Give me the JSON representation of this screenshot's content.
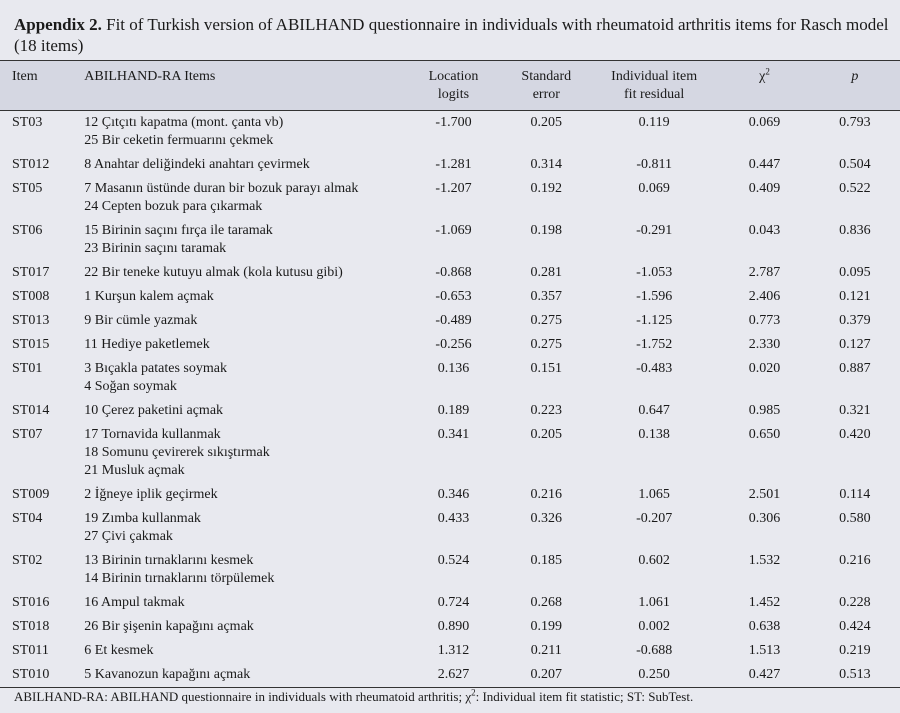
{
  "title": {
    "label": "Appendix 2.",
    "text": "Fit of Turkish version of ABILHAND questionnaire in individuals with rheumatoid arthritis items for Rasch model (18 items)"
  },
  "table": {
    "header": [
      [
        "Item"
      ],
      [
        "ABILHAND-RA Items"
      ],
      [
        "Location",
        "logits"
      ],
      [
        "Standard",
        "error"
      ],
      [
        "Individual item",
        "fit residual"
      ],
      {
        "base": "χ",
        "sup": "2"
      },
      [
        "p"
      ]
    ],
    "rows": [
      [
        "ST03",
        [
          "12 Çıtçıtı kapatma (mont. çanta vb)",
          "25 Bir ceketin fermuarını çekmek"
        ],
        "-1.700",
        "0.205",
        "0.119",
        "0.069",
        "0.793"
      ],
      [
        "ST012",
        [
          "8 Anahtar deliğindeki anahtarı çevirmek"
        ],
        "-1.281",
        "0.314",
        "-0.811",
        "0.447",
        "0.504"
      ],
      [
        "ST05",
        [
          "7 Masanın üstünde duran bir bozuk parayı almak",
          "24 Cepten bozuk para çıkarmak"
        ],
        "-1.207",
        "0.192",
        "0.069",
        "0.409",
        "0.522"
      ],
      [
        "ST06",
        [
          "15 Birinin saçını fırça ile taramak",
          "23 Birinin saçını taramak"
        ],
        "-1.069",
        "0.198",
        "-0.291",
        "0.043",
        "0.836"
      ],
      [
        "ST017",
        [
          "22 Bir teneke kutuyu almak (kola kutusu gibi)"
        ],
        "-0.868",
        "0.281",
        "-1.053",
        "2.787",
        "0.095"
      ],
      [
        "ST008",
        [
          "1 Kurşun kalem açmak"
        ],
        "-0.653",
        "0.357",
        "-1.596",
        "2.406",
        "0.121"
      ],
      [
        "ST013",
        [
          "9 Bir cümle yazmak"
        ],
        "-0.489",
        "0.275",
        "-1.125",
        "0.773",
        "0.379"
      ],
      [
        "ST015",
        [
          "11 Hediye paketlemek"
        ],
        "-0.256",
        "0.275",
        "-1.752",
        "2.330",
        "0.127"
      ],
      [
        "ST01",
        [
          "3 Bıçakla patates soymak",
          "4 Soğan soymak"
        ],
        "0.136",
        "0.151",
        "-0.483",
        "0.020",
        "0.887"
      ],
      [
        "ST014",
        [
          "10 Çerez paketini açmak"
        ],
        "0.189",
        "0.223",
        "0.647",
        "0.985",
        "0.321"
      ],
      [
        "ST07",
        [
          "17 Tornavida kullanmak",
          "18 Somunu çevirerek sıkıştırmak",
          "21 Musluk açmak"
        ],
        "0.341",
        "0.205",
        "0.138",
        "0.650",
        "0.420"
      ],
      [
        "ST009",
        [
          "2 İğneye iplik geçirmek"
        ],
        "0.346",
        "0.216",
        "1.065",
        "2.501",
        "0.114"
      ],
      [
        "ST04",
        [
          "19 Zımba kullanmak",
          "27 Çivi çakmak"
        ],
        "0.433",
        "0.326",
        "-0.207",
        "0.306",
        "0.580"
      ],
      [
        "ST02",
        [
          "13 Birinin tırnaklarını kesmek",
          "14 Birinin tırnaklarını törpülemek"
        ],
        "0.524",
        "0.185",
        "0.602",
        "1.532",
        "0.216"
      ],
      [
        "ST016",
        [
          "16 Ampul takmak"
        ],
        "0.724",
        "0.268",
        "1.061",
        "1.452",
        "0.228"
      ],
      [
        "ST018",
        [
          "26 Bir şişenin kapağını açmak"
        ],
        "0.890",
        "0.199",
        "0.002",
        "0.638",
        "0.424"
      ],
      [
        "ST011",
        [
          "6 Et kesmek"
        ],
        "1.312",
        "0.211",
        "-0.688",
        "1.513",
        "0.219"
      ],
      [
        "ST010",
        [
          "5 Kavanozun kapağını açmak"
        ],
        "2.627",
        "0.207",
        "0.250",
        "0.427",
        "0.513"
      ]
    ]
  },
  "footer": {
    "before": "ABILHAND-RA: ABILHAND questionnaire in individuals with rheumatoid arthritis; χ",
    "sup": "2",
    "after": ": Individual item fit statistic; ST: SubTest."
  }
}
